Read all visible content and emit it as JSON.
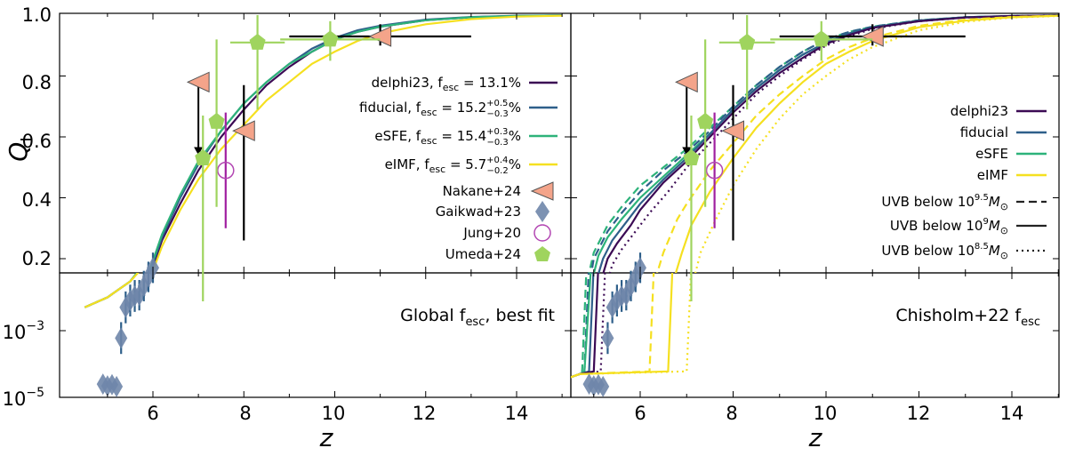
{
  "chart_data": [
    {
      "type": "line",
      "panel": "top-left",
      "ylabel": "Q_I",
      "xlim": [
        4.5,
        15
      ],
      "ylim": [
        0.05,
        1.0
      ],
      "yticks": [
        "0.2",
        "0.4",
        "0.6",
        "0.8",
        "1.0"
      ],
      "legend": "right",
      "series": [
        {
          "name": "delphi23, f_esc = 13.1%",
          "color": "#3b0a54",
          "z": [
            4.5,
            5.0,
            5.5,
            5.9,
            6.2,
            6.6,
            7.0,
            7.5,
            8.0,
            8.5,
            9.0,
            9.5,
            10.0,
            10.5,
            11.0,
            12.0,
            13.0,
            14.0,
            15.0
          ],
          "q": [
            0.005,
            0.01,
            0.03,
            0.13,
            0.26,
            0.38,
            0.49,
            0.6,
            0.69,
            0.77,
            0.83,
            0.88,
            0.92,
            0.945,
            0.962,
            0.983,
            0.993,
            0.997,
            0.999
          ]
        },
        {
          "name": "fiducial, f_esc = 15.2^{+0.5}_{-0.3}%",
          "color": "#2e5f8a",
          "z": [
            4.5,
            5.0,
            5.5,
            5.9,
            6.2,
            6.6,
            7.0,
            7.5,
            8.0,
            8.5,
            9.0,
            9.5,
            10.0,
            10.5,
            11.0,
            12.0,
            13.0,
            14.0,
            15.0
          ],
          "q": [
            0.005,
            0.01,
            0.03,
            0.14,
            0.27,
            0.4,
            0.51,
            0.62,
            0.71,
            0.78,
            0.84,
            0.89,
            0.925,
            0.95,
            0.965,
            0.985,
            0.994,
            0.998,
            0.999
          ]
        },
        {
          "name": "eSFE, f_esc = 15.4^{+0.3}_{-0.3}%",
          "color": "#2db37a",
          "z": [
            4.5,
            5.0,
            5.5,
            5.9,
            6.2,
            6.6,
            7.0,
            7.5,
            8.0,
            8.5,
            9.0,
            9.5,
            10.0,
            10.5,
            11.0,
            12.0,
            13.0,
            14.0,
            15.0
          ],
          "q": [
            0.005,
            0.01,
            0.03,
            0.15,
            0.28,
            0.41,
            0.52,
            0.62,
            0.71,
            0.78,
            0.84,
            0.88,
            0.92,
            0.945,
            0.962,
            0.983,
            0.993,
            0.997,
            0.999
          ]
        },
        {
          "name": "eIMF, f_esc = 5.7^{+0.4}_{-0.2}%",
          "color": "#f5e020",
          "z": [
            4.5,
            5.0,
            5.5,
            5.9,
            6.2,
            6.6,
            7.0,
            7.5,
            8.0,
            8.5,
            9.0,
            9.5,
            10.0,
            10.5,
            11.0,
            12.0,
            13.0,
            14.0,
            15.0
          ],
          "q": [
            0.005,
            0.01,
            0.03,
            0.12,
            0.24,
            0.36,
            0.46,
            0.56,
            0.64,
            0.72,
            0.78,
            0.84,
            0.88,
            0.915,
            0.94,
            0.97,
            0.987,
            0.995,
            0.998
          ]
        }
      ]
    },
    {
      "type": "line",
      "panel": "top-right",
      "xlim": [
        4.5,
        15
      ],
      "ylim": [
        0.05,
        1.0
      ],
      "legend": "right",
      "series": [
        {
          "name": "delphi23",
          "color": "#3b0a54"
        },
        {
          "name": "fiducial",
          "color": "#2e5f8a"
        },
        {
          "name": "eSFE",
          "color": "#2db37a"
        },
        {
          "name": "eIMF",
          "color": "#f5e020"
        }
      ],
      "linestyles": [
        {
          "name": "UVB below 10^{9.5} M_⊙",
          "style": "dashed"
        },
        {
          "name": "UVB below 10^{9} M_⊙",
          "style": "solid"
        },
        {
          "name": "UVB below 10^{8.5} M_⊙",
          "style": "dotted"
        }
      ],
      "curves": [
        {
          "color": "#2db37a",
          "style": "dashed",
          "z": [
            4.75,
            4.85,
            5.0,
            5.3,
            5.6,
            6.0,
            6.5,
            7.0,
            7.5,
            8.0,
            8.5,
            9.0,
            9.5,
            10.0,
            10.5,
            11.0,
            12.0,
            13.0,
            14.0,
            15.0
          ],
          "q": [
            0.05,
            0.12,
            0.22,
            0.31,
            0.37,
            0.44,
            0.5,
            0.56,
            0.63,
            0.7,
            0.77,
            0.83,
            0.88,
            0.92,
            0.945,
            0.962,
            0.983,
            0.993,
            0.997,
            0.999
          ]
        },
        {
          "color": "#2e5f8a",
          "style": "dashed",
          "z": [
            4.8,
            4.9,
            5.0,
            5.3,
            5.6,
            6.0,
            6.5,
            7.0,
            7.5,
            8.0,
            8.5,
            9.0,
            9.5,
            10.0,
            10.5,
            11.0,
            12.0,
            13.0,
            14.0,
            15.0
          ],
          "q": [
            0.05,
            0.11,
            0.2,
            0.29,
            0.35,
            0.42,
            0.49,
            0.55,
            0.62,
            0.7,
            0.77,
            0.83,
            0.88,
            0.92,
            0.945,
            0.962,
            0.983,
            0.993,
            0.997,
            0.999
          ]
        },
        {
          "color": "#2db37a",
          "style": "solid",
          "z": [
            4.8,
            4.95,
            5.1,
            5.3,
            5.6,
            6.0,
            6.5,
            7.0,
            7.5,
            8.0,
            8.5,
            9.0,
            9.5,
            10.0,
            10.5,
            11.0,
            12.0,
            13.0,
            14.0,
            15.0
          ],
          "q": [
            0.05,
            0.12,
            0.21,
            0.27,
            0.33,
            0.4,
            0.47,
            0.54,
            0.61,
            0.69,
            0.76,
            0.82,
            0.87,
            0.91,
            0.94,
            0.96,
            0.982,
            0.993,
            0.997,
            0.999
          ]
        },
        {
          "color": "#2e5f8a",
          "style": "solid",
          "z": [
            4.9,
            5.0,
            5.2,
            5.4,
            5.7,
            6.0,
            6.5,
            7.0,
            7.5,
            8.0,
            8.5,
            9.0,
            9.5,
            10.0,
            10.5,
            11.0,
            12.0,
            13.0,
            14.0,
            15.0
          ],
          "q": [
            0.05,
            0.1,
            0.2,
            0.26,
            0.32,
            0.38,
            0.46,
            0.53,
            0.61,
            0.69,
            0.76,
            0.82,
            0.87,
            0.91,
            0.94,
            0.96,
            0.982,
            0.993,
            0.997,
            0.999
          ]
        },
        {
          "color": "#3b0a54",
          "style": "solid",
          "z": [
            5.0,
            5.1,
            5.3,
            5.5,
            5.8,
            6.0,
            6.5,
            7.0,
            7.5,
            8.0,
            8.5,
            9.0,
            9.5,
            10.0,
            10.5,
            11.0,
            12.0,
            13.0,
            14.0,
            15.0
          ],
          "q": [
            0.05,
            0.1,
            0.2,
            0.25,
            0.31,
            0.36,
            0.45,
            0.52,
            0.6,
            0.68,
            0.75,
            0.81,
            0.86,
            0.905,
            0.935,
            0.958,
            0.98,
            0.992,
            0.997,
            0.999
          ]
        },
        {
          "color": "#3b0a54",
          "style": "dotted",
          "z": [
            5.15,
            5.25,
            5.4,
            5.6,
            5.9,
            6.2,
            6.6,
            7.0,
            7.5,
            8.0,
            8.5,
            9.0,
            9.5,
            10.0,
            10.5,
            11.0,
            12.0,
            13.0,
            14.0,
            15.0
          ],
          "q": [
            0.05,
            0.1,
            0.18,
            0.23,
            0.29,
            0.35,
            0.42,
            0.5,
            0.58,
            0.66,
            0.74,
            0.8,
            0.855,
            0.9,
            0.93,
            0.955,
            0.98,
            0.992,
            0.997,
            0.999
          ]
        },
        {
          "color": "#f5e020",
          "style": "dashed",
          "z": [
            6.2,
            6.3,
            6.5,
            6.8,
            7.0,
            7.5,
            8.0,
            8.5,
            9.0,
            9.5,
            10.0,
            10.5,
            11.0,
            12.0,
            13.0,
            14.0,
            15.0
          ],
          "q": [
            0.05,
            0.12,
            0.22,
            0.33,
            0.38,
            0.49,
            0.58,
            0.67,
            0.74,
            0.8,
            0.855,
            0.895,
            0.925,
            0.965,
            0.985,
            0.994,
            0.998
          ]
        },
        {
          "color": "#f5e020",
          "style": "solid",
          "z": [
            6.6,
            6.7,
            6.9,
            7.1,
            7.5,
            8.0,
            8.5,
            9.0,
            9.5,
            10.0,
            10.5,
            11.0,
            12.0,
            13.0,
            14.0,
            15.0
          ],
          "q": [
            0.05,
            0.12,
            0.22,
            0.31,
            0.42,
            0.53,
            0.63,
            0.71,
            0.78,
            0.84,
            0.88,
            0.915,
            0.96,
            0.982,
            0.993,
            0.998
          ]
        },
        {
          "color": "#f5e020",
          "style": "dotted",
          "z": [
            7.0,
            7.1,
            7.3,
            7.6,
            8.0,
            8.5,
            9.0,
            9.5,
            10.0,
            10.5,
            11.0,
            12.0,
            13.0,
            14.0,
            15.0
          ],
          "q": [
            0.05,
            0.1,
            0.22,
            0.32,
            0.44,
            0.56,
            0.66,
            0.74,
            0.8,
            0.855,
            0.895,
            0.95,
            0.978,
            0.992,
            0.997
          ]
        }
      ]
    },
    {
      "type": "scatter",
      "panel": "observations",
      "series": [
        {
          "name": "Nakane+24",
          "marker": "triangle-left",
          "color": "#f4a48a",
          "points": [
            {
              "z": 7.0,
              "q": 0.78,
              "upper_limit": true,
              "limit_to": 0.54
            },
            {
              "z": 8.0,
              "q": 0.62,
              "yerr": [
                0.36,
                0.15
              ]
            },
            {
              "z": 11.0,
              "q": 0.93,
              "xerr": [
                2.0,
                2.0
              ],
              "yerr": [
                0.03,
                0.04
              ]
            }
          ]
        },
        {
          "name": "Gaikwad+23",
          "marker": "diamond",
          "color": "#6f86aa",
          "points": [
            {
              "z": 4.9,
              "q": 2.5e-05
            },
            {
              "z": 5.0,
              "q": 2.2e-05
            },
            {
              "z": 5.1,
              "q": 2.4e-05
            },
            {
              "z": 5.2,
              "q": 2.1e-05
            },
            {
              "z": 5.3,
              "q": 0.0006
            },
            {
              "z": 5.4,
              "q": 0.005
            },
            {
              "z": 5.5,
              "q": 0.008
            },
            {
              "z": 5.6,
              "q": 0.011
            },
            {
              "z": 5.7,
              "q": 0.08
            },
            {
              "z": 5.8,
              "q": 0.11
            },
            {
              "z": 5.9,
              "q": 0.14
            },
            {
              "z": 6.0,
              "q": 0.17
            }
          ]
        },
        {
          "name": "Jung+20",
          "marker": "circle-open",
          "color": "#b347b3",
          "points": [
            {
              "z": 7.6,
              "q": 0.49,
              "yerr": [
                0.19,
                0.19
              ]
            }
          ]
        },
        {
          "name": "Umeda+24",
          "marker": "pentagon",
          "color": "#9fd45e",
          "points": [
            {
              "z": 7.1,
              "q": 0.53,
              "yerr": [
                0.47,
                0.14
              ]
            },
            {
              "z": 7.4,
              "q": 0.65,
              "yerr": [
                0.28,
                0.27
              ]
            },
            {
              "z": 8.3,
              "q": 0.91,
              "xerr": [
                0.6,
                0.6
              ],
              "yerr": [
                0.22,
                0.09
              ]
            },
            {
              "z": 9.9,
              "q": 0.92,
              "xerr": [
                1.1,
                1.1
              ],
              "yerr": [
                0.07,
                0.06
              ]
            }
          ]
        }
      ]
    },
    {
      "type": "line",
      "panel": "bottom-left",
      "xlabel": "z",
      "yscale": "log",
      "ylim": [
        1e-05,
        0.05
      ],
      "yticks": [
        "10^{-5}",
        "10^{-3}"
      ],
      "xticks": [
        "6",
        "8",
        "10",
        "12",
        "14"
      ],
      "annotation": "Global f_esc, best fit"
    },
    {
      "type": "line",
      "panel": "bottom-right",
      "xlabel": "z",
      "yscale": "log",
      "ylim": [
        1e-05,
        0.05
      ],
      "xticks": [
        "6",
        "8",
        "10",
        "12",
        "14"
      ],
      "annotation": "Chisholm+22 f_esc"
    }
  ],
  "labels": {
    "ylabel_main": "Q",
    "ylabel_sub": "I",
    "xlabel": "z",
    "ytick_top": [
      "0.2",
      "0.4",
      "0.6",
      "0.8",
      "1.0"
    ],
    "ytick_bottom_base": "10",
    "ytick_bottom_exp": [
      "−5",
      "−3"
    ],
    "xticks": [
      "6",
      "8",
      "10",
      "12",
      "14"
    ],
    "annot_left_main": "Global f",
    "annot_left_sub": "esc",
    "annot_left_tail": ", best fit",
    "annot_right_main": "Chisholm+22 f",
    "annot_right_sub": "esc",
    "legend_left": [
      {
        "lead": "delphi23, f",
        "sub": "esc",
        "mid": " = 13.1%",
        "sup": "",
        "lo": "",
        "tail": ""
      },
      {
        "lead": "fiducial, f",
        "sub": "esc",
        "mid": " = 15.2",
        "sup": "+0.5",
        "lo": "−0.3",
        "tail": "%"
      },
      {
        "lead": "eSFE, f",
        "sub": "esc",
        "mid": " = 15.4",
        "sup": "+0.3",
        "lo": "−0.3",
        "tail": "%"
      },
      {
        "lead": "eIMF, f",
        "sub": "esc",
        "mid": " = 5.7",
        "sup": "+0.4",
        "lo": "−0.2",
        "tail": "%"
      }
    ],
    "legend_obs": [
      "Nakane+24",
      "Gaikwad+23",
      "Jung+20",
      "Umeda+24"
    ],
    "legend_right_models": [
      "delphi23",
      "fiducial",
      "eSFE",
      "eIMF"
    ],
    "legend_right_uvb": [
      {
        "lead": "UVB below 10",
        "exp": "9.5",
        "tail": "M",
        "sub": "⊙"
      },
      {
        "lead": "UVB below 10",
        "exp": "9",
        "tail": "M",
        "sub": "⊙"
      },
      {
        "lead": "UVB below 10",
        "exp": "8.5",
        "tail": "M",
        "sub": "⊙"
      }
    ]
  }
}
